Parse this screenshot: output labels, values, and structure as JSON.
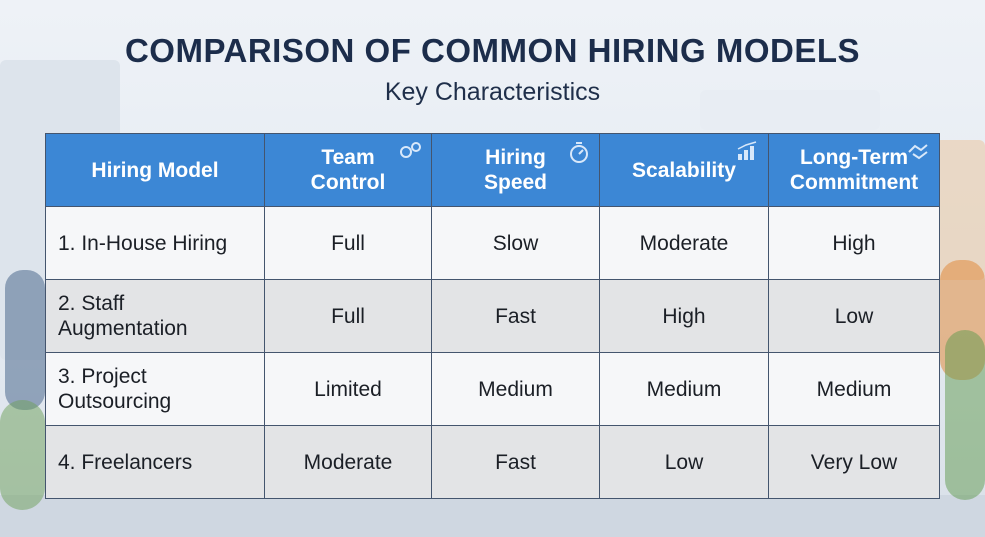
{
  "header": {
    "title": "COMPARISON OF COMMON HIRING MODELS",
    "subtitle": "Key Characteristics"
  },
  "table": {
    "columns": [
      "Hiring Model",
      "Team Control",
      "Hiring Speed",
      "Scalability",
      "Long-Term Commitment"
    ],
    "rows": [
      [
        "1. In-House Hiring",
        "Full",
        "Slow",
        "Moderate",
        "High"
      ],
      [
        "2. Staff Augmentation",
        "Full",
        "Fast",
        "High",
        "Low"
      ],
      [
        "3. Project Outsourcing",
        "Limited",
        "Medium",
        "Medium",
        "Medium"
      ],
      [
        "4. Freelancers",
        "Moderate",
        "Fast",
        "Low",
        "Very Low"
      ]
    ]
  }
}
